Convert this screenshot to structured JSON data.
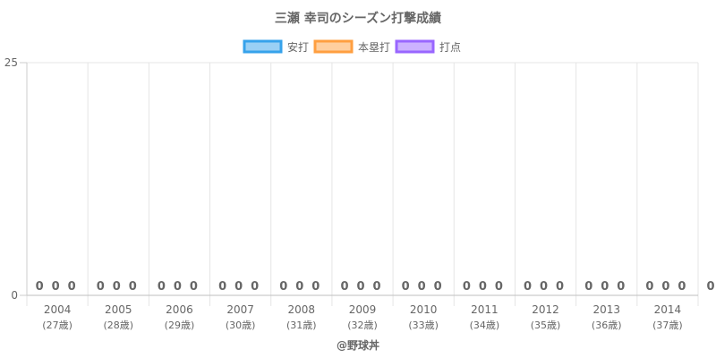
{
  "chart_data": {
    "type": "bar",
    "title": "三瀬 幸司のシーズン打撃成績",
    "categories": [
      "2004",
      "2005",
      "2006",
      "2007",
      "2008",
      "2009",
      "2010",
      "2011",
      "2012",
      "2013",
      "2014"
    ],
    "category_sublabels": [
      "(27歳)",
      "(28歳)",
      "(29歳)",
      "(30歳)",
      "(31歳)",
      "(32歳)",
      "(33歳)",
      "(34歳)",
      "(35歳)",
      "(36歳)",
      "(37歳)"
    ],
    "series": [
      {
        "name": "安打",
        "values": [
          0,
          0,
          0,
          0,
          0,
          0,
          0,
          0,
          0,
          0,
          0
        ],
        "color": "#36a2eb",
        "fill": "#9ad0f5"
      },
      {
        "name": "本塁打",
        "values": [
          0,
          0,
          0,
          0,
          0,
          0,
          0,
          0,
          0,
          0,
          0
        ],
        "color": "#ff9f40",
        "fill": "#ffcf9f"
      },
      {
        "name": "打点",
        "values": [
          0,
          0,
          0,
          0,
          0,
          0,
          0,
          0,
          0,
          0,
          0
        ],
        "color": "#9966ff",
        "fill": "#ccb2ff"
      }
    ],
    "ylim": [
      0,
      25
    ],
    "yticks": [
      "0",
      "25"
    ],
    "grid": true,
    "legend_position": "top",
    "stray_label": "0",
    "credit": "@野球丼"
  }
}
